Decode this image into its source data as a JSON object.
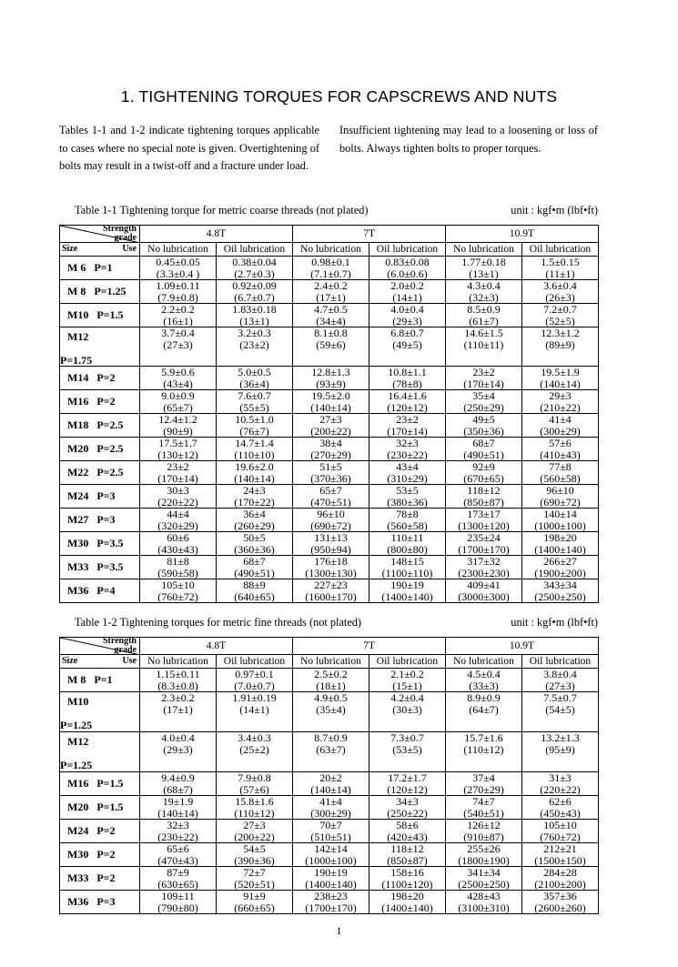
{
  "header": {
    "title": "1.   TIGHTENING TORQUES FOR CAPSCREWS AND NUTS"
  },
  "intro": {
    "left": "Tables 1-1 and 1-2 indicate tightening torques applicable to cases where no special note is given. Overtightening of bolts may result in a twist-off and a fracture under load.",
    "right": "Insufficient tightening may lead to a loosening or loss of bolts. Always tighten bolts to proper torques."
  },
  "tables": [
    {
      "caption": "Table 1-1   Tightening torque for metric coarse threads (not plated)",
      "unit": "unit : kgf•m (lbf•ft)",
      "strength_grade": [
        "Strength",
        "grade"
      ],
      "size": "Size",
      "use": "Use",
      "grades": [
        "4.8T",
        "7T",
        "10.9T"
      ],
      "lubrication": [
        "No lubrication",
        "Oil lubrication",
        "No lubrication",
        "Oil lubrication",
        "No lubrication",
        "Oil lubrication"
      ],
      "rows": [
        {
          "size": "M 6",
          "pitch": "P=1",
          "cells": [
            [
              "0.45±0.05",
              "(3.3±0.4 )"
            ],
            [
              "0.38±0.04",
              "(2.7±0.3)"
            ],
            [
              "0.98±0.1",
              "(7.1±0.7)"
            ],
            [
              "0.83±0.08",
              "(6.0±0.6)"
            ],
            [
              "1.77±0.18",
              "(13±1)"
            ],
            [
              "1.5±0.15",
              "(11±1)"
            ]
          ]
        },
        {
          "size": "M 8",
          "pitch": "P=1.25",
          "cells": [
            [
              "1.09±0.11",
              "(7.9±0.8)"
            ],
            [
              "0.92±0.09",
              "(6.7±0.7)"
            ],
            [
              "2.4±0.2",
              "(17±1)"
            ],
            [
              "2.0±0.2",
              "(14±1)"
            ],
            [
              "4.3±0.4",
              "(32±3)"
            ],
            [
              "3.6±0.4",
              "(26±3)"
            ]
          ]
        },
        {
          "size": "M10",
          "pitch": "P=1.5",
          "cells": [
            [
              "2.2±0.2",
              "(16±1)"
            ],
            [
              "1.83±0.18",
              "(13±1)"
            ],
            [
              "4.7±0.5",
              "(34±4)"
            ],
            [
              "4.0±0.4",
              "(29±3)"
            ],
            [
              "8.5±0.9",
              "(61±7)"
            ],
            [
              "7.2±0.7",
              "(52±5)"
            ]
          ]
        },
        {
          "size": "M12",
          "pitch": "P=1.75",
          "cells": [
            [
              "3.7±0.4",
              "(27±3)"
            ],
            [
              "3.2±0.3",
              "(23±2)"
            ],
            [
              "8.1±0.8",
              "(59±6)"
            ],
            [
              "6.8±0.7",
              "(49±5)"
            ],
            [
              "14.6±1.5",
              "(110±11)"
            ],
            [
              "12.3±1.2",
              "(89±9)"
            ]
          ]
        },
        {
          "size": "M14",
          "pitch": "P=2",
          "cells": [
            [
              "5.9±0.6",
              "(43±4)"
            ],
            [
              "5.0±0.5",
              "(36±4)"
            ],
            [
              "12.8±1.3",
              "(93±9)"
            ],
            [
              "10.8±1.1",
              "(78±8)"
            ],
            [
              "23±2",
              "(170±14)"
            ],
            [
              "19.5±1.9",
              "(140±14)"
            ]
          ]
        },
        {
          "size": "M16",
          "pitch": "P=2",
          "cells": [
            [
              "9.0±0.9",
              "(65±7)"
            ],
            [
              "7.6±0.7",
              "(55±5)"
            ],
            [
              "19.5±2.0",
              "(140±14)"
            ],
            [
              "16.4±1.6",
              "(120±12)"
            ],
            [
              "35±4",
              "(250±29)"
            ],
            [
              "29±3",
              "(210±22)"
            ]
          ]
        },
        {
          "size": "M18",
          "pitch": "P=2.5",
          "cells": [
            [
              "12.4±1.2",
              "(90±9)"
            ],
            [
              "10.5±1.0",
              "(76±7)"
            ],
            [
              "27±3",
              "(200±22)"
            ],
            [
              "23±2",
              "(170±14)"
            ],
            [
              "49±5",
              "(350±36)"
            ],
            [
              "41±4",
              "(300±29)"
            ]
          ]
        },
        {
          "size": "M20",
          "pitch": "P=2.5",
          "cells": [
            [
              "17.5±1.7",
              "(130±12)"
            ],
            [
              "14.7±1.4",
              "(110±10)"
            ],
            [
              "38±4",
              "(270±29)"
            ],
            [
              "32±3",
              "(230±22)"
            ],
            [
              "68±7",
              "(490±51)"
            ],
            [
              "57±6",
              "(410±43)"
            ]
          ]
        },
        {
          "size": "M22",
          "pitch": "P=2.5",
          "cells": [
            [
              "23±2",
              "(170±14)"
            ],
            [
              "19.6±2.0",
              "(140±14)"
            ],
            [
              "51±5",
              "(370±36)"
            ],
            [
              "43±4",
              "(310±29)"
            ],
            [
              "92±9",
              "(670±65)"
            ],
            [
              "77±8",
              "(560±58)"
            ]
          ]
        },
        {
          "size": "M24",
          "pitch": "P=3",
          "cells": [
            [
              "30±3",
              "(220±22)"
            ],
            [
              "24±3",
              "(170±22)"
            ],
            [
              "65±7",
              "(470±51)"
            ],
            [
              "53±5",
              "(380±36)"
            ],
            [
              "118±12",
              "(850±87)"
            ],
            [
              "96±10",
              "(690±72)"
            ]
          ]
        },
        {
          "size": "M27",
          "pitch": "P=3",
          "cells": [
            [
              "44±4",
              "(320±29)"
            ],
            [
              "36±4",
              "(260±29)"
            ],
            [
              "96±10",
              "(690±72)"
            ],
            [
              "78±8",
              "(560±58)"
            ],
            [
              "173±17",
              "(1300±120)"
            ],
            [
              "140±14",
              "(1000±100)"
            ]
          ]
        },
        {
          "size": "M30",
          "pitch": "P=3.5",
          "cells": [
            [
              "60±6",
              "(430±43)"
            ],
            [
              "50±5",
              "(360±36)"
            ],
            [
              "131±13",
              "(950±94)"
            ],
            [
              "110±11",
              "(800±80)"
            ],
            [
              "235±24",
              "(1700±170)"
            ],
            [
              "198±20",
              "(1400±140)"
            ]
          ]
        },
        {
          "size": "M33",
          "pitch": "P=3.5",
          "cells": [
            [
              "81±8",
              "(590±58)"
            ],
            [
              "68±7",
              "(490±51)"
            ],
            [
              "176±18",
              "(1300±130)"
            ],
            [
              "148±15",
              "(1100±110)"
            ],
            [
              "317±32",
              "(2300±230)"
            ],
            [
              "266±27",
              "(1900±200)"
            ]
          ]
        },
        {
          "size": "M36",
          "pitch": "P=4",
          "cells": [
            [
              "105±10",
              "(760±72)"
            ],
            [
              "88±9",
              "(640±65)"
            ],
            [
              "227±23",
              "(1600±170)"
            ],
            [
              "190±19",
              "(1400±140)"
            ],
            [
              "409±41",
              "(3000±300)"
            ],
            [
              "343±34",
              "(2500±250)"
            ]
          ]
        }
      ]
    },
    {
      "caption": "Table 1-2   Tightening torques for metric fine threads (not plated)",
      "unit": "unit : kgf•m (lbf•ft)",
      "strength_grade": [
        "Strength",
        "grade"
      ],
      "size": "Size",
      "use": "Use",
      "grades": [
        "4.8T",
        "7T",
        "10.9T"
      ],
      "lubrication": [
        "No lubrication",
        "Oil lubrication",
        "No lubrication",
        "Oil lubrication",
        "No lubrication",
        "Oil lubrication"
      ],
      "rows": [
        {
          "size": "M 8",
          "pitch": "P=1",
          "cells": [
            [
              "1.15±0.11",
              "(8.3±0.8)"
            ],
            [
              "0.97±0.1",
              "(7.0±0.7)"
            ],
            [
              "2.5±0.2",
              "(18±1)"
            ],
            [
              "2.1±0.2",
              "(15±1)"
            ],
            [
              "4.5±0.4",
              "(33±3)"
            ],
            [
              "3.8±0.4",
              "(27±3)"
            ]
          ]
        },
        {
          "size": "M10",
          "pitch": "P=1.25",
          "cells": [
            [
              "2.3±0.2",
              "(17±1)"
            ],
            [
              "1.91±0.19",
              "(14±1)"
            ],
            [
              "4.9±0.5",
              "(35±4)"
            ],
            [
              "4.2±0.4",
              "(30±3)"
            ],
            [
              "8.9±0.9",
              "(64±7)"
            ],
            [
              "7.5±0.7",
              "(54±5)"
            ]
          ]
        },
        {
          "size": "M12",
          "pitch": "P=1.25",
          "cells": [
            [
              "4.0±0.4",
              "(29±3)"
            ],
            [
              "3.4±0.3",
              "(25±2)"
            ],
            [
              "8.7±0.9",
              "(63±7)"
            ],
            [
              "7.3±0.7",
              "(53±5)"
            ],
            [
              "15.7±1.6",
              "(110±12)"
            ],
            [
              "13.2±1.3",
              "(95±9)"
            ]
          ]
        },
        {
          "size": "M16",
          "pitch": "P=1.5",
          "cells": [
            [
              "9.4±0.9",
              "(68±7)"
            ],
            [
              "7.9±0.8",
              "(57±6)"
            ],
            [
              "20±2",
              "(140±14)"
            ],
            [
              "17.2±1.7",
              "(120±12)"
            ],
            [
              "37±4",
              "(270±29)"
            ],
            [
              "31±3",
              "(220±22)"
            ]
          ]
        },
        {
          "size": "M20",
          "pitch": "P=1.5",
          "cells": [
            [
              "19±1.9",
              "(140±14)"
            ],
            [
              "15.8±1.6",
              "(110±12)"
            ],
            [
              "41±4",
              "(300±29)"
            ],
            [
              "34±3",
              "(250±22)"
            ],
            [
              "74±7",
              "(540±51)"
            ],
            [
              "62±6",
              "(450±43)"
            ]
          ]
        },
        {
          "size": "M24",
          "pitch": "P=2",
          "cells": [
            [
              "32±3",
              "(230±22)"
            ],
            [
              "27±3",
              "(200±22)"
            ],
            [
              "70±7",
              "(510±51)"
            ],
            [
              "58±6",
              "(420±43)"
            ],
            [
              "126±12",
              "(910±87)"
            ],
            [
              "105±10",
              "(760±72)"
            ]
          ]
        },
        {
          "size": "M30",
          "pitch": "P=2",
          "cells": [
            [
              "65±6",
              "(470±43)"
            ],
            [
              "54±5",
              "(390±36)"
            ],
            [
              "142±14",
              "(1000±100)"
            ],
            [
              "118±12",
              "(850±87)"
            ],
            [
              "255±26",
              "(1800±190)"
            ],
            [
              "212±21",
              "(1500±150)"
            ]
          ]
        },
        {
          "size": "M33",
          "pitch": "P=2",
          "cells": [
            [
              "87±9",
              "(630±65)"
            ],
            [
              "72±7",
              "(520±51)"
            ],
            [
              "190±19",
              "(1400±140)"
            ],
            [
              "158±16",
              "(1100±120)"
            ],
            [
              "341±34",
              "(2500±250)"
            ],
            [
              "284±28",
              "(2100±200)"
            ]
          ]
        },
        {
          "size": "M36",
          "pitch": "P=3",
          "cells": [
            [
              "109±11",
              "(790±80)"
            ],
            [
              "91±9",
              "(660±65)"
            ],
            [
              "238±23",
              "(1700±170)"
            ],
            [
              "198±20",
              "(1400±140)"
            ],
            [
              "428±43",
              "(3100±310)"
            ],
            [
              "357±36",
              "(2600±260)"
            ]
          ]
        }
      ]
    }
  ],
  "page_number": "1"
}
